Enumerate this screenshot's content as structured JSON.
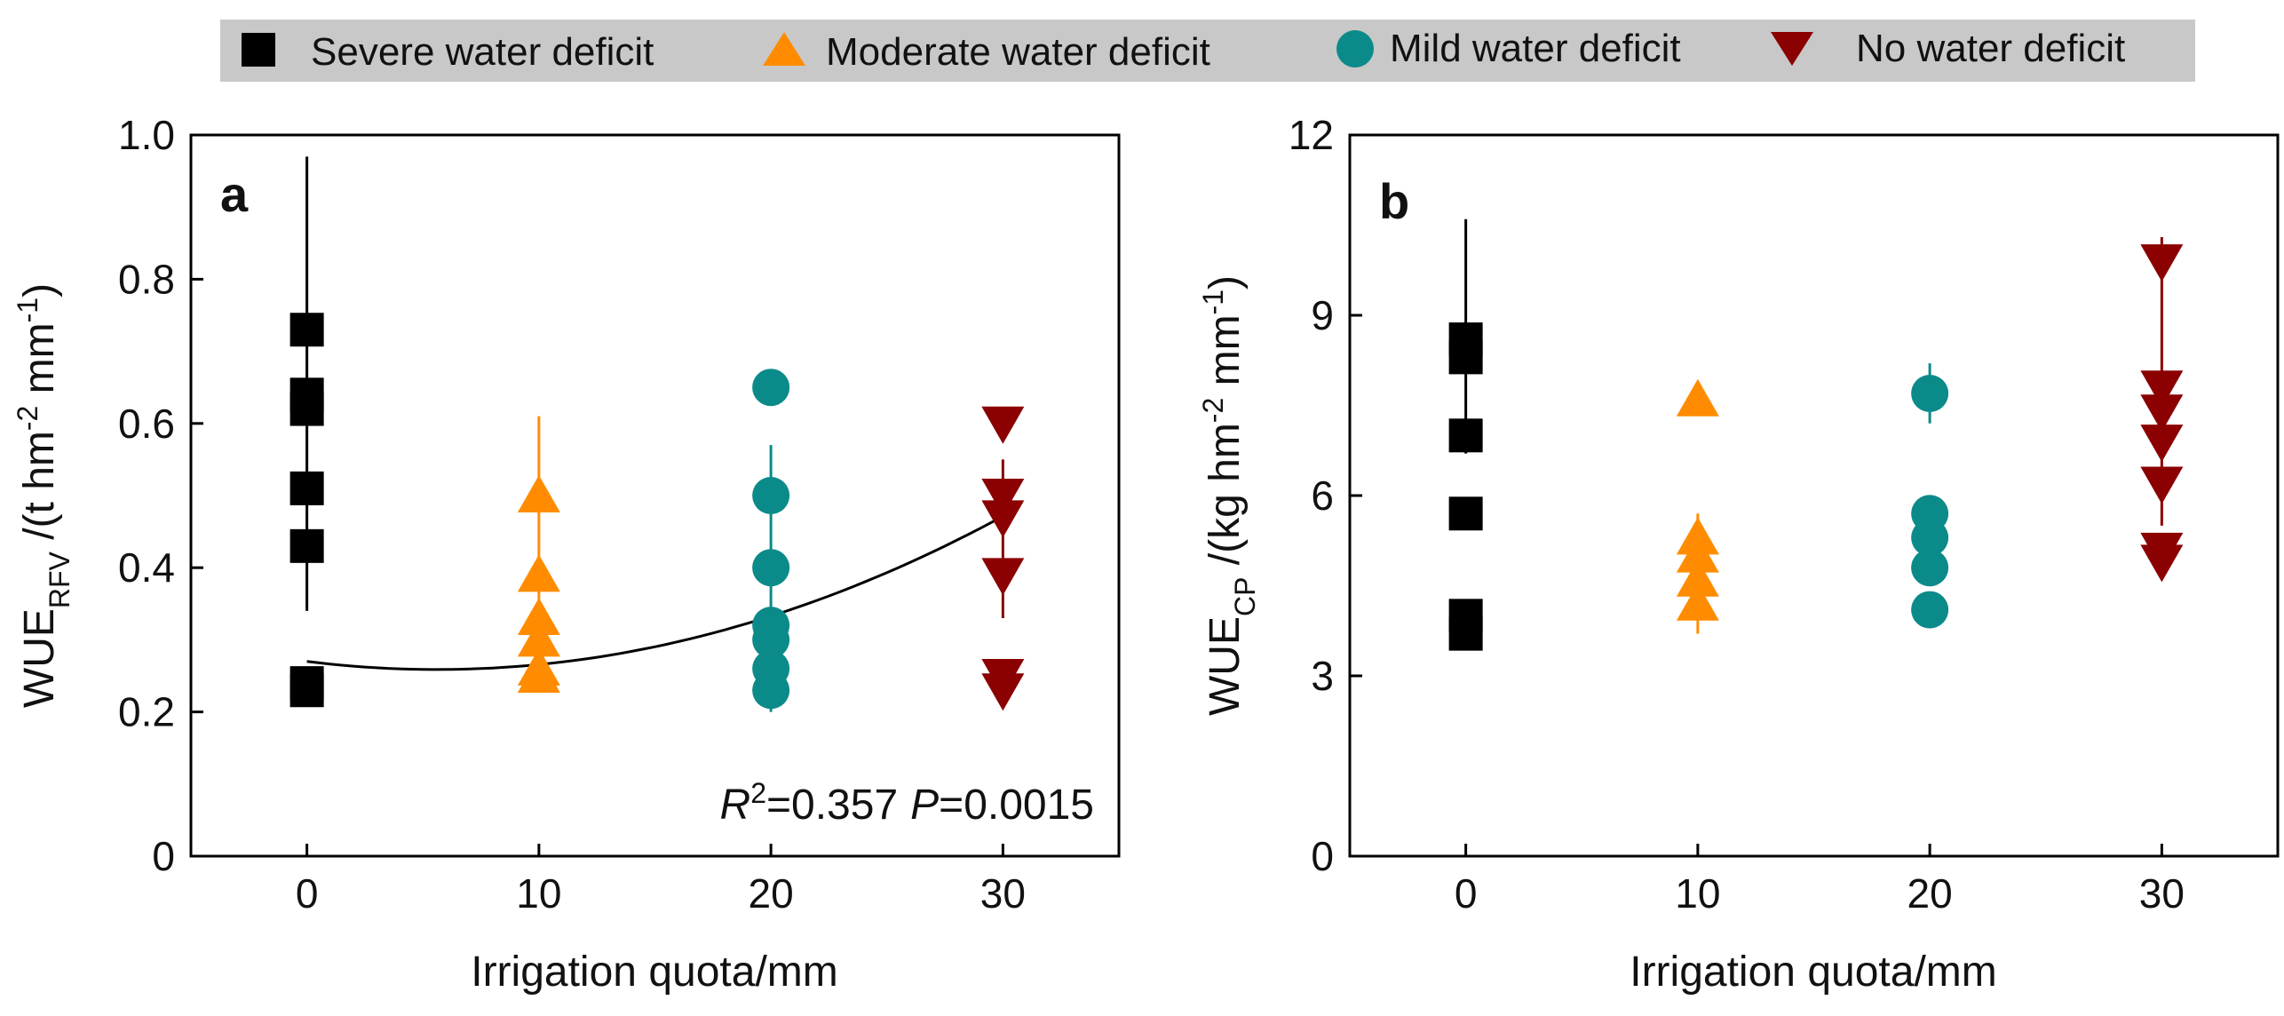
{
  "legend": {
    "items": [
      {
        "label": "Severe water deficit",
        "marker": "square",
        "color": "#000000"
      },
      {
        "label": "Moderate water deficit",
        "marker": "triangle-up",
        "color": "#ff8c00"
      },
      {
        "label": "Mild water deficit",
        "marker": "circle",
        "color": "#0b8a8a"
      },
      {
        "label": "No water deficit",
        "marker": "triangle-down",
        "color": "#8b0000"
      }
    ],
    "background": "#c8c8c8"
  },
  "chart_data": [
    {
      "type": "scatter",
      "panel": "a",
      "ylabel_main": "WUE",
      "ylabel_sub": "RFV",
      "ylabel_mid": " /(t hm",
      "ylabel_sup1": "-2",
      "ylabel_mid2": " mm",
      "ylabel_sup2": "-1",
      "ylabel_end": ")",
      "xlabel": "Irrigation quota/mm",
      "xlim": [
        -5,
        35
      ],
      "ylim": [
        0,
        1.0
      ],
      "xticks": [
        0,
        10,
        20,
        30
      ],
      "xtick_labels": [
        "0",
        "10",
        "20",
        "30"
      ],
      "yticks": [
        0,
        0.2,
        0.4,
        0.6,
        0.8,
        1.0
      ],
      "ytick_labels": [
        "0",
        "0.2",
        "0.4",
        "0.6",
        "0.8",
        "1.0"
      ],
      "series": [
        {
          "name": "Severe water deficit",
          "x": 0,
          "values": [
            0.73,
            0.64,
            0.62,
            0.51,
            0.43,
            0.24,
            0.23
          ],
          "err_low": 0.34,
          "err_high": 0.97
        },
        {
          "name": "Moderate water deficit",
          "x": 10,
          "values": [
            0.5,
            0.39,
            0.33,
            0.3,
            0.26,
            0.25
          ],
          "err_low": 0.25,
          "err_high": 0.61
        },
        {
          "name": "Mild water deficit",
          "x": 20,
          "values": [
            0.65,
            0.5,
            0.4,
            0.32,
            0.3,
            0.26,
            0.23
          ],
          "err_low": 0.2,
          "err_high": 0.57
        },
        {
          "name": "No water deficit",
          "x": 30,
          "values": [
            0.6,
            0.5,
            0.47,
            0.39,
            0.25,
            0.23
          ],
          "err_low": 0.33,
          "err_high": 0.55
        }
      ],
      "fit": {
        "type": "quadratic",
        "coef": [
          0.27,
          -0.004,
          0.000357
        ],
        "x_range": [
          0,
          30
        ]
      },
      "annotation": {
        "r_label": "R",
        "r_sup": "2",
        "r_value": "=0.357",
        "p_label": "P",
        "p_value": "=0.0015"
      }
    },
    {
      "type": "scatter",
      "panel": "b",
      "ylabel_main": "WUE",
      "ylabel_sub": "CP",
      "ylabel_mid": " /(kg hm",
      "ylabel_sup1": "-2",
      "ylabel_mid2": " mm",
      "ylabel_sup2": "-1",
      "ylabel_end": ")",
      "xlabel": "Irrigation quota/mm",
      "xlim": [
        -5,
        35
      ],
      "ylim": [
        0,
        12
      ],
      "xticks": [
        0,
        10,
        20,
        30
      ],
      "xtick_labels": [
        "0",
        "10",
        "20",
        "30"
      ],
      "yticks": [
        0,
        3,
        6,
        9,
        12
      ],
      "ytick_labels": [
        "0",
        "3",
        "6",
        "9",
        "12"
      ],
      "series": [
        {
          "name": "Severe water deficit",
          "x": 0,
          "values": [
            8.6,
            8.3,
            7.0,
            5.7,
            4.0,
            3.7
          ],
          "err_low": 6.7,
          "err_high": 10.6
        },
        {
          "name": "Moderate water deficit",
          "x": 10,
          "values": [
            7.6,
            5.3,
            5.0,
            4.6,
            4.2
          ],
          "err_low": 3.7,
          "err_high": 5.7
        },
        {
          "name": "Mild water deficit",
          "x": 20,
          "values": [
            7.7,
            5.7,
            5.3,
            4.8,
            4.1
          ],
          "err_low": 7.2,
          "err_high": 8.2
        },
        {
          "name": "No water deficit",
          "x": 30,
          "values": [
            9.9,
            7.8,
            7.4,
            6.9,
            6.2,
            5.1,
            4.9
          ],
          "err_low": 5.5,
          "err_high": 10.3
        }
      ]
    }
  ]
}
